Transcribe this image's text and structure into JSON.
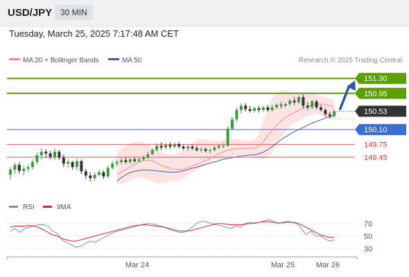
{
  "header": {
    "symbol": "USD/JPY",
    "timeframe": "30 MIN",
    "datetime": "Tuesday, March 25, 2025 7:17:48 AM CET"
  },
  "legend": {
    "ma20_label": "MA 20 + Bollinger Bands",
    "ma50_label": "MA 50",
    "credit": "Research © 2025 Trading Central"
  },
  "colors": {
    "ma20": "#f08a8a",
    "ma50": "#3f5f9b",
    "bands_fill": "#fde4e4",
    "resistance": "#5aa000",
    "pivot": "#3c6ed2",
    "support": "#d03838",
    "arrow": "#2a5aa0",
    "candle_up": "#3d9b3d",
    "candle_down": "#333333",
    "rsi": "#6a8fd8",
    "rsi_ma": "#e02020"
  },
  "chart_data": [
    {
      "type": "candlestick",
      "instrument": "USD/JPY",
      "timeframe": "30 MIN",
      "ylim": [
        148.72,
        151.58
      ],
      "x_tick_labels": [
        "Mar 24",
        "Mar 25",
        "Mar 26"
      ],
      "levels": [
        {
          "value": 151.3,
          "label": "151.30",
          "type": "resistance"
        },
        {
          "value": 150.95,
          "label": "150.95",
          "type": "resistance"
        },
        {
          "value": 150.53,
          "label": "150.53",
          "type": "last"
        },
        {
          "value": 150.1,
          "label": "150.10",
          "type": "pivot"
        },
        {
          "value": 149.75,
          "label": "149.75",
          "type": "support"
        },
        {
          "value": 149.45,
          "label": "149.45",
          "type": "support"
        }
      ],
      "forecast_target": 151.3,
      "candles": [
        {
          "o": 149.04,
          "h": 149.22,
          "l": 148.92,
          "c": 149.16
        },
        {
          "o": 149.16,
          "h": 149.32,
          "l": 149.06,
          "c": 149.27
        },
        {
          "o": 149.27,
          "h": 149.34,
          "l": 149.06,
          "c": 149.13
        },
        {
          "o": 149.13,
          "h": 149.26,
          "l": 149.02,
          "c": 149.18
        },
        {
          "o": 149.18,
          "h": 149.28,
          "l": 149.1,
          "c": 149.22
        },
        {
          "o": 149.22,
          "h": 149.4,
          "l": 149.16,
          "c": 149.34
        },
        {
          "o": 149.34,
          "h": 149.56,
          "l": 149.28,
          "c": 149.5
        },
        {
          "o": 149.5,
          "h": 149.66,
          "l": 149.4,
          "c": 149.58
        },
        {
          "o": 149.58,
          "h": 149.64,
          "l": 149.44,
          "c": 149.54
        },
        {
          "o": 149.54,
          "h": 149.6,
          "l": 149.4,
          "c": 149.46
        },
        {
          "o": 149.46,
          "h": 149.66,
          "l": 149.38,
          "c": 149.58
        },
        {
          "o": 149.58,
          "h": 149.62,
          "l": 149.38,
          "c": 149.44
        },
        {
          "o": 149.44,
          "h": 149.52,
          "l": 149.22,
          "c": 149.3
        },
        {
          "o": 149.3,
          "h": 149.4,
          "l": 149.2,
          "c": 149.34
        },
        {
          "o": 149.34,
          "h": 149.36,
          "l": 149.16,
          "c": 149.22
        },
        {
          "o": 149.22,
          "h": 149.42,
          "l": 149.14,
          "c": 149.36
        },
        {
          "o": 149.36,
          "h": 149.4,
          "l": 149.06,
          "c": 149.12
        },
        {
          "o": 149.12,
          "h": 149.18,
          "l": 148.94,
          "c": 149.02
        },
        {
          "o": 149.02,
          "h": 149.1,
          "l": 148.88,
          "c": 148.96
        },
        {
          "o": 148.96,
          "h": 149.1,
          "l": 148.9,
          "c": 149.04
        },
        {
          "o": 149.04,
          "h": 149.16,
          "l": 149.0,
          "c": 149.1
        },
        {
          "o": 149.1,
          "h": 149.14,
          "l": 148.94,
          "c": 149.0
        },
        {
          "o": 149.0,
          "h": 149.26,
          "l": 148.96,
          "c": 149.2
        },
        {
          "o": 149.2,
          "h": 149.36,
          "l": 149.16,
          "c": 149.3
        },
        {
          "o": 149.3,
          "h": 149.4,
          "l": 149.24,
          "c": 149.34
        },
        {
          "o": 149.34,
          "h": 149.42,
          "l": 149.28,
          "c": 149.38
        },
        {
          "o": 149.38,
          "h": 149.44,
          "l": 149.3,
          "c": 149.34
        },
        {
          "o": 149.34,
          "h": 149.42,
          "l": 149.3,
          "c": 149.4
        },
        {
          "o": 149.4,
          "h": 149.44,
          "l": 149.32,
          "c": 149.36
        },
        {
          "o": 149.36,
          "h": 149.44,
          "l": 149.32,
          "c": 149.4
        },
        {
          "o": 149.4,
          "h": 149.5,
          "l": 149.36,
          "c": 149.44
        },
        {
          "o": 149.44,
          "h": 149.58,
          "l": 149.4,
          "c": 149.52
        },
        {
          "o": 149.52,
          "h": 149.66,
          "l": 149.5,
          "c": 149.62
        },
        {
          "o": 149.62,
          "h": 149.78,
          "l": 149.58,
          "c": 149.72
        },
        {
          "o": 149.72,
          "h": 149.8,
          "l": 149.62,
          "c": 149.68
        },
        {
          "o": 149.68,
          "h": 149.78,
          "l": 149.64,
          "c": 149.74
        },
        {
          "o": 149.74,
          "h": 149.8,
          "l": 149.64,
          "c": 149.7
        },
        {
          "o": 149.7,
          "h": 149.8,
          "l": 149.66,
          "c": 149.76
        },
        {
          "o": 149.76,
          "h": 149.8,
          "l": 149.66,
          "c": 149.7
        },
        {
          "o": 149.7,
          "h": 149.74,
          "l": 149.62,
          "c": 149.66
        },
        {
          "o": 149.66,
          "h": 149.74,
          "l": 149.6,
          "c": 149.7
        },
        {
          "o": 149.7,
          "h": 149.74,
          "l": 149.62,
          "c": 149.66
        },
        {
          "o": 149.66,
          "h": 149.72,
          "l": 149.58,
          "c": 149.62
        },
        {
          "o": 149.62,
          "h": 149.68,
          "l": 149.56,
          "c": 149.64
        },
        {
          "o": 149.64,
          "h": 149.68,
          "l": 149.56,
          "c": 149.6
        },
        {
          "o": 149.6,
          "h": 149.66,
          "l": 149.54,
          "c": 149.62
        },
        {
          "o": 149.62,
          "h": 149.72,
          "l": 149.58,
          "c": 149.68
        },
        {
          "o": 149.68,
          "h": 149.76,
          "l": 149.64,
          "c": 149.72
        },
        {
          "o": 149.72,
          "h": 149.78,
          "l": 149.66,
          "c": 149.72
        },
        {
          "o": 149.72,
          "h": 150.18,
          "l": 149.7,
          "c": 150.12
        },
        {
          "o": 150.12,
          "h": 150.4,
          "l": 150.08,
          "c": 150.34
        },
        {
          "o": 150.34,
          "h": 150.62,
          "l": 150.28,
          "c": 150.56
        },
        {
          "o": 150.56,
          "h": 150.72,
          "l": 150.48,
          "c": 150.66
        },
        {
          "o": 150.66,
          "h": 150.72,
          "l": 150.52,
          "c": 150.58
        },
        {
          "o": 150.58,
          "h": 150.66,
          "l": 150.5,
          "c": 150.54
        },
        {
          "o": 150.54,
          "h": 150.64,
          "l": 150.5,
          "c": 150.6
        },
        {
          "o": 150.6,
          "h": 150.66,
          "l": 150.5,
          "c": 150.56
        },
        {
          "o": 150.56,
          "h": 150.66,
          "l": 150.52,
          "c": 150.62
        },
        {
          "o": 150.62,
          "h": 150.68,
          "l": 150.52,
          "c": 150.56
        },
        {
          "o": 150.56,
          "h": 150.68,
          "l": 150.52,
          "c": 150.62
        },
        {
          "o": 150.62,
          "h": 150.72,
          "l": 150.58,
          "c": 150.68
        },
        {
          "o": 150.68,
          "h": 150.74,
          "l": 150.6,
          "c": 150.66
        },
        {
          "o": 150.66,
          "h": 150.74,
          "l": 150.62,
          "c": 150.7
        },
        {
          "o": 150.7,
          "h": 150.82,
          "l": 150.66,
          "c": 150.78
        },
        {
          "o": 150.78,
          "h": 150.86,
          "l": 150.68,
          "c": 150.74
        },
        {
          "o": 150.74,
          "h": 150.9,
          "l": 150.7,
          "c": 150.86
        },
        {
          "o": 150.86,
          "h": 150.92,
          "l": 150.6,
          "c": 150.66
        },
        {
          "o": 150.66,
          "h": 150.74,
          "l": 150.56,
          "c": 150.62
        },
        {
          "o": 150.62,
          "h": 150.8,
          "l": 150.58,
          "c": 150.76
        },
        {
          "o": 150.76,
          "h": 150.8,
          "l": 150.58,
          "c": 150.62
        },
        {
          "o": 150.62,
          "h": 150.68,
          "l": 150.52,
          "c": 150.56
        },
        {
          "o": 150.56,
          "h": 150.6,
          "l": 150.4,
          "c": 150.46
        },
        {
          "o": 150.46,
          "h": 150.52,
          "l": 150.36,
          "c": 150.42
        },
        {
          "o": 150.42,
          "h": 150.58,
          "l": 150.38,
          "c": 150.53
        }
      ],
      "ma20": [
        149.05,
        149.1,
        149.16,
        149.22,
        149.28,
        149.33,
        149.37,
        149.38,
        149.36,
        149.32,
        149.26,
        149.22,
        149.19,
        149.17,
        149.16,
        149.17,
        149.2,
        149.24,
        149.29,
        149.33,
        149.37,
        149.42,
        149.48,
        149.53,
        149.58,
        149.62,
        149.64,
        149.65,
        149.66,
        149.66,
        149.66,
        149.66,
        149.7,
        149.82,
        149.95,
        150.08,
        150.2,
        150.3,
        150.38,
        150.45,
        150.5,
        150.55,
        150.6,
        150.64,
        150.68,
        150.7,
        150.7,
        150.68,
        150.66,
        150.64
      ],
      "bb_upper": [
        149.55,
        149.65,
        149.72,
        149.78,
        149.82,
        149.82,
        149.8,
        149.75,
        149.7,
        149.64,
        149.58,
        149.54,
        149.5,
        149.52,
        149.56,
        149.62,
        149.7,
        149.78,
        149.84,
        149.88,
        149.88,
        149.86,
        149.84,
        149.84,
        149.86,
        149.88,
        149.88,
        149.88,
        149.86,
        149.84,
        149.84,
        149.86,
        150.0,
        150.3,
        150.6,
        150.82,
        150.96,
        151.02,
        151.02,
        151.0,
        150.98,
        150.98,
        150.98,
        150.98,
        150.96,
        150.92,
        150.9,
        150.86,
        150.82,
        150.8
      ],
      "bb_lower": [
        148.82,
        148.82,
        148.85,
        148.9,
        148.95,
        148.98,
        148.95,
        148.92,
        148.88,
        148.84,
        148.84,
        148.86,
        148.88,
        148.88,
        148.9,
        148.96,
        149.02,
        149.08,
        149.14,
        149.2,
        149.26,
        149.32,
        149.38,
        149.4,
        149.42,
        149.44,
        149.46,
        149.48,
        149.5,
        149.5,
        149.48,
        149.44,
        149.42,
        149.4,
        149.44,
        149.55,
        149.72,
        149.9,
        150.04,
        150.16,
        150.24,
        150.3,
        150.36,
        150.42,
        150.44,
        150.46,
        150.44,
        150.4,
        150.36,
        150.32
      ],
      "ma50": [
        148.9,
        148.97,
        149.04,
        149.09,
        149.12,
        149.14,
        149.15,
        149.15,
        149.14,
        149.13,
        149.12,
        149.11,
        149.1,
        149.1,
        149.11,
        149.13,
        149.16,
        149.19,
        149.22,
        149.25,
        149.28,
        149.31,
        149.34,
        149.37,
        149.4,
        149.42,
        149.44,
        149.46,
        149.48,
        149.49,
        149.5,
        149.51,
        149.53,
        149.57,
        149.63,
        149.7,
        149.78,
        149.86,
        149.93,
        149.99,
        150.05,
        150.1,
        150.15,
        150.2,
        150.25,
        150.29,
        150.33,
        150.37,
        150.4,
        150.43
      ]
    },
    {
      "type": "line",
      "ylim": [
        20,
        82
      ],
      "y_ticks": [
        70,
        50,
        30
      ],
      "series": [
        {
          "name": "RSI",
          "values": [
            58,
            62,
            56,
            62,
            64,
            66,
            68,
            68,
            66,
            58,
            54,
            44,
            40,
            36,
            32,
            34,
            38,
            42,
            40,
            44,
            48,
            52,
            56,
            58,
            60,
            62,
            64,
            66,
            68,
            70,
            70,
            68,
            66,
            64,
            60,
            58,
            56,
            56,
            60,
            66,
            72,
            74,
            72,
            70,
            68,
            66,
            64,
            62,
            66,
            64,
            70,
            72,
            70,
            72,
            74,
            76,
            74,
            70,
            72,
            74,
            72,
            70,
            62,
            52,
            58,
            50,
            50,
            46,
            42,
            44
          ]
        },
        {
          "name": "9MA",
          "values": [
            64,
            66,
            66,
            66,
            67,
            66,
            64,
            60,
            56,
            52,
            50,
            46,
            44,
            42,
            42,
            44,
            46,
            48,
            50,
            52,
            54,
            56,
            58,
            60,
            62,
            64,
            66,
            67,
            68,
            68,
            67,
            66,
            65,
            64,
            62,
            60,
            58,
            58,
            58,
            60,
            62,
            64,
            66,
            68,
            70,
            70,
            69,
            68,
            68,
            68,
            69,
            70,
            71,
            72,
            73,
            73,
            72,
            71,
            71,
            72,
            72,
            71,
            68,
            64,
            60,
            56,
            52,
            50,
            48,
            48
          ]
        }
      ],
      "x_tick_labels": [
        "Mar 24",
        "Mar 25",
        "Mar 26"
      ]
    }
  ]
}
